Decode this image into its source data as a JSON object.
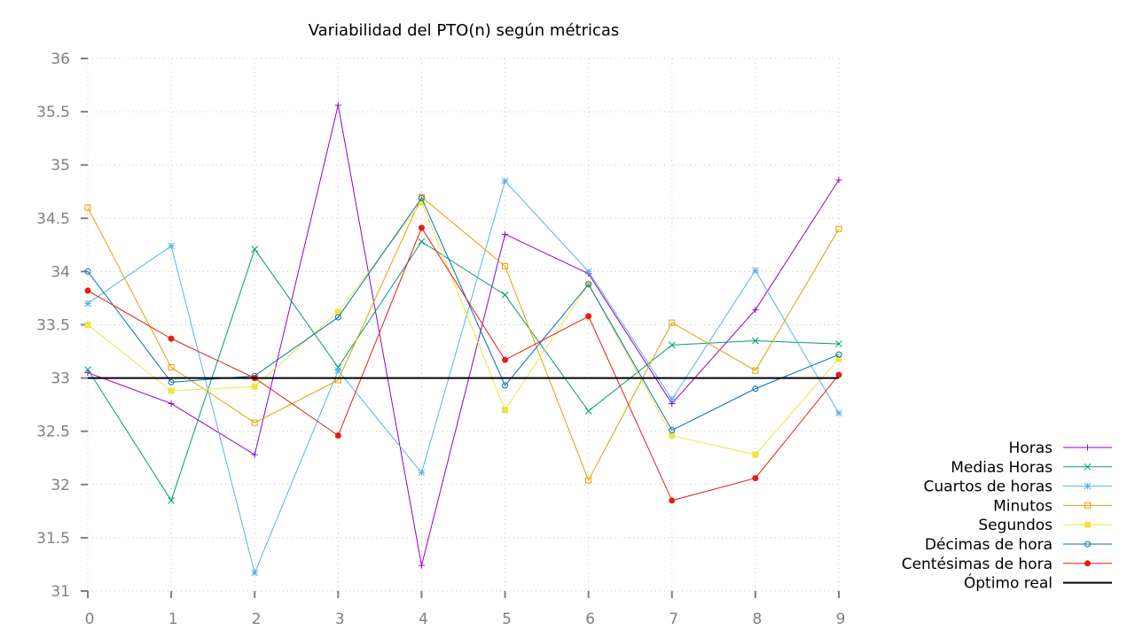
{
  "chart_data": {
    "type": "line",
    "title": "Variabilidad del PTO(n) según métricas",
    "xlabel": "",
    "ylabel": "",
    "x": [
      0,
      1,
      2,
      3,
      4,
      5,
      6,
      7,
      8,
      9
    ],
    "xlim": [
      0,
      9
    ],
    "ylim": [
      31,
      36
    ],
    "yticks": [
      31,
      31.5,
      32,
      32.5,
      33,
      33.5,
      34,
      34.5,
      35,
      35.5,
      36
    ],
    "grid": true,
    "legend_position": "right",
    "series": [
      {
        "name": "Horas",
        "color": "#9400d3",
        "marker": "plus",
        "values": [
          33.05,
          32.76,
          32.28,
          35.56,
          31.24,
          34.35,
          33.98,
          32.76,
          33.64,
          34.86
        ]
      },
      {
        "name": "Medias Horas",
        "color": "#009e73",
        "marker": "cross",
        "values": [
          33.08,
          31.85,
          34.21,
          33.1,
          34.28,
          33.78,
          32.69,
          33.31,
          33.35,
          33.32
        ]
      },
      {
        "name": "Cuartos de horas",
        "color": "#56b4e9",
        "marker": "star",
        "values": [
          33.7,
          34.24,
          31.17,
          33.07,
          32.11,
          34.85,
          34.0,
          32.8,
          34.01,
          32.67
        ]
      },
      {
        "name": "Minutos",
        "color": "#e69f00",
        "marker": "square-open",
        "values": [
          34.6,
          33.1,
          32.58,
          32.98,
          34.7,
          34.05,
          32.04,
          33.52,
          33.07,
          34.4
        ]
      },
      {
        "name": "Segundos",
        "color": "#f0e442",
        "marker": "square-filled",
        "values": [
          33.5,
          32.88,
          32.92,
          33.62,
          34.65,
          32.7,
          33.88,
          32.46,
          32.28,
          33.18
        ]
      },
      {
        "name": "Décimas de hora",
        "color": "#0072b2",
        "marker": "circle-open",
        "values": [
          34.0,
          32.96,
          33.02,
          33.57,
          34.69,
          32.93,
          33.88,
          32.51,
          32.9,
          33.22
        ]
      },
      {
        "name": "Centésimas de hora",
        "color": "#e51e10",
        "marker": "circle-filled",
        "values": [
          33.82,
          33.37,
          33.0,
          32.46,
          34.41,
          33.17,
          33.58,
          31.85,
          32.06,
          33.03
        ]
      },
      {
        "name": "Óptimo real",
        "color": "#000000",
        "marker": "none",
        "values": [
          33,
          33,
          33,
          33,
          33,
          33,
          33,
          33,
          33,
          33
        ]
      }
    ]
  }
}
